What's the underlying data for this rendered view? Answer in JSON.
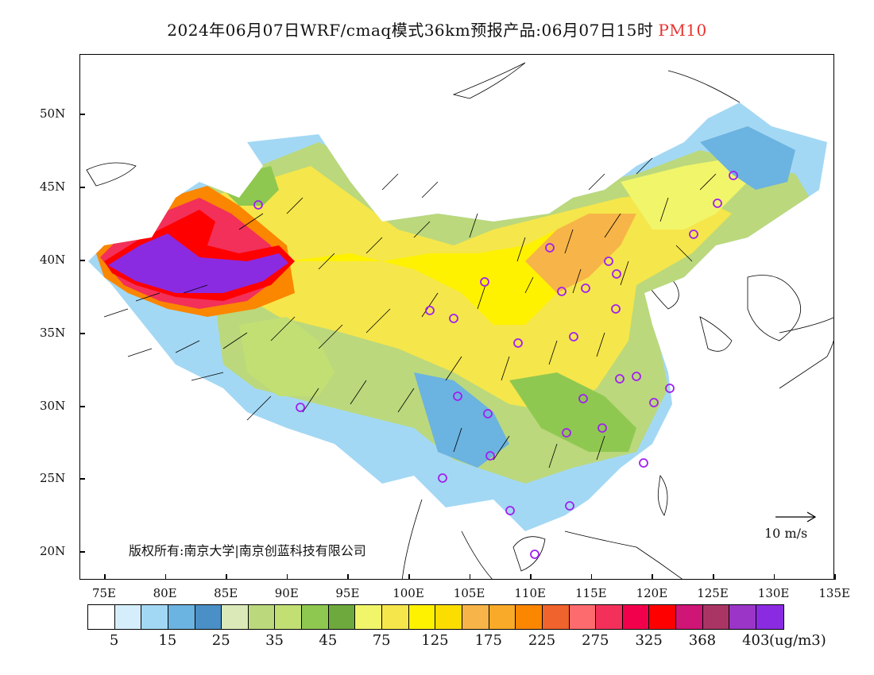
{
  "title": {
    "main": "2024年06月07日WRF/cmaq模式36km预报产品:06月07日15时",
    "product": "PM10"
  },
  "axes": {
    "lat_labels": [
      "50N",
      "45N",
      "40N",
      "35N",
      "30N",
      "25N",
      "20N"
    ],
    "lon_labels": [
      "75E",
      "80E",
      "85E",
      "90E",
      "95E",
      "100E",
      "105E",
      "110E",
      "115E",
      "120E",
      "125E",
      "130E",
      "135E"
    ]
  },
  "copyright": "版权所有:南京大学|南京创蓝科技有限公司",
  "wind_scale_label": "10 m/s",
  "legend": {
    "colors": [
      "#ffffff",
      "#d6eefb",
      "#a3d8f4",
      "#6bb3e0",
      "#4a8fc6",
      "#dbe9b8",
      "#bbd87c",
      "#c2df74",
      "#8fc850",
      "#6ea93e",
      "#f1f56a",
      "#f5e64b",
      "#fff200",
      "#fbde00",
      "#f7b448",
      "#f8aa28",
      "#fb8600",
      "#f0632c",
      "#fe6b6e",
      "#f2305a",
      "#f2004c",
      "#ff0000",
      "#cf1576",
      "#a93565",
      "#9a35c7",
      "#8a2be2"
    ],
    "labels": [
      "5",
      "15",
      "25",
      "35",
      "45",
      "75",
      "125",
      "175",
      "225",
      "275",
      "325",
      "368",
      "403"
    ],
    "units": "(ug/m3)"
  },
  "station_markers_color": "#a020f0"
}
